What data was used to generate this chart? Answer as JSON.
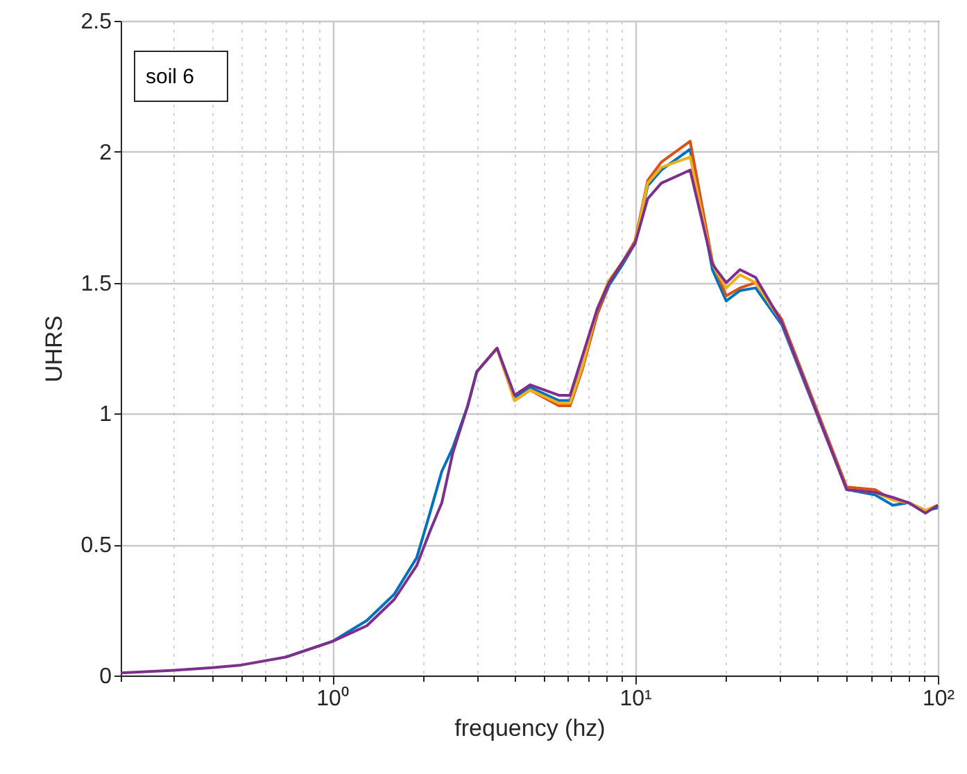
{
  "chart_data": {
    "type": "line",
    "xlabel": "frequency (hz)",
    "ylabel": "UHRS",
    "log": "x",
    "grid": true,
    "line_style": "solid",
    "marker": "none",
    "annotations": [
      "soil 6"
    ],
    "xlim": [
      0.2,
      100
    ],
    "ylim": [
      0,
      2.5
    ],
    "xticks": [
      {
        "value": 0.2,
        "label": null
      },
      {
        "value": 0.3,
        "label": null
      },
      {
        "value": 0.4,
        "label": null
      },
      {
        "value": 0.5,
        "label": null
      },
      {
        "value": 0.6,
        "label": null
      },
      {
        "value": 0.7,
        "label": null
      },
      {
        "value": 0.8,
        "label": null
      },
      {
        "value": 0.9,
        "label": null
      },
      {
        "value": 1,
        "label": "10⁰"
      },
      {
        "value": 2,
        "label": null
      },
      {
        "value": 3,
        "label": null
      },
      {
        "value": 4,
        "label": null
      },
      {
        "value": 5,
        "label": null
      },
      {
        "value": 6,
        "label": null
      },
      {
        "value": 7,
        "label": null
      },
      {
        "value": 8,
        "label": null
      },
      {
        "value": 9,
        "label": null
      },
      {
        "value": 10,
        "label": "10¹"
      },
      {
        "value": 20,
        "label": null
      },
      {
        "value": 30,
        "label": null
      },
      {
        "value": 40,
        "label": null
      },
      {
        "value": 50,
        "label": null
      },
      {
        "value": 60,
        "label": null
      },
      {
        "value": 70,
        "label": null
      },
      {
        "value": 80,
        "label": null
      },
      {
        "value": 90,
        "label": null
      },
      {
        "value": 100,
        "label": "10²"
      }
    ],
    "yticks": [
      0,
      0.5,
      1,
      1.5,
      2,
      2.5
    ],
    "x": [
      0.2,
      0.3,
      0.4,
      0.5,
      0.7,
      1.0,
      1.3,
      1.6,
      1.9,
      2.1,
      2.3,
      2.5,
      2.8,
      3.0,
      3.5,
      4.0,
      4.5,
      5.6,
      6.1,
      6.7,
      7.5,
      8.2,
      9.1,
      10,
      11,
      12.2,
      15.2,
      18,
      20,
      22.2,
      25,
      30.5,
      50,
      62,
      71,
      80,
      91,
      100
    ],
    "series": [
      {
        "color": "#0072bd",
        "values": [
          null,
          null,
          null,
          null,
          0.07,
          0.13,
          0.21,
          0.31,
          0.45,
          0.62,
          0.78,
          0.87,
          1.03,
          1.16,
          1.25,
          1.06,
          1.1,
          1.05,
          1.05,
          1.18,
          1.38,
          1.49,
          1.57,
          1.65,
          1.87,
          1.93,
          2.01,
          1.55,
          1.43,
          1.47,
          1.48,
          1.34,
          0.71,
          0.69,
          0.65,
          0.66,
          0.63,
          0.64
        ]
      },
      {
        "color": "#d95319",
        "values": [
          null,
          null,
          null,
          null,
          null,
          null,
          null,
          null,
          null,
          null,
          null,
          null,
          null,
          1.16,
          1.25,
          1.05,
          1.09,
          1.03,
          1.03,
          1.17,
          1.38,
          1.5,
          1.58,
          1.66,
          1.89,
          1.96,
          2.04,
          1.58,
          1.45,
          1.48,
          1.5,
          1.36,
          0.72,
          0.71,
          0.67,
          0.66,
          0.63,
          0.65
        ]
      },
      {
        "color": "#edb120",
        "values": [
          null,
          null,
          null,
          null,
          null,
          null,
          null,
          null,
          null,
          null,
          null,
          null,
          null,
          1.16,
          1.25,
          1.05,
          1.09,
          1.04,
          1.04,
          1.18,
          1.4,
          1.51,
          1.58,
          1.65,
          1.88,
          1.94,
          1.98,
          1.57,
          1.48,
          1.53,
          1.5,
          1.35,
          0.71,
          0.7,
          0.67,
          0.66,
          0.63,
          0.65
        ]
      },
      {
        "color": "#7e2f8e",
        "values": [
          0.01,
          0.02,
          0.03,
          0.04,
          0.07,
          0.13,
          0.19,
          0.29,
          0.42,
          0.55,
          0.66,
          0.85,
          1.03,
          1.16,
          1.25,
          1.07,
          1.11,
          1.07,
          1.07,
          1.22,
          1.4,
          1.5,
          1.58,
          1.65,
          1.82,
          1.88,
          1.93,
          1.57,
          1.5,
          1.55,
          1.52,
          1.35,
          0.71,
          0.7,
          0.68,
          0.66,
          0.62,
          0.65
        ]
      }
    ]
  }
}
